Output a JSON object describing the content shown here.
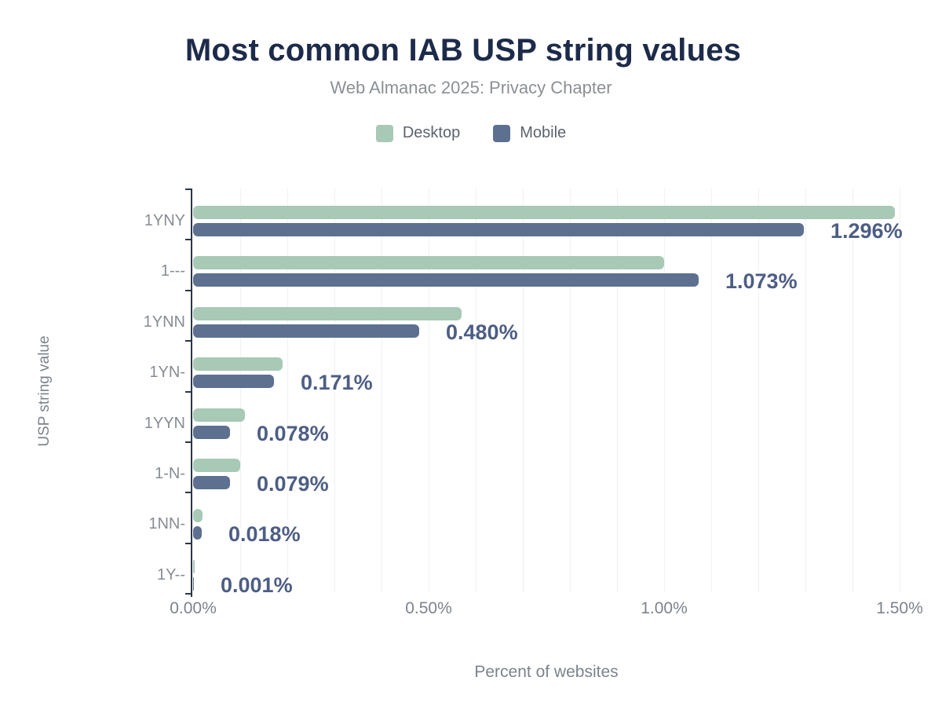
{
  "header": {
    "title": "Most common IAB USP string values",
    "subtitle": "Web Almanac 2025: Privacy Chapter"
  },
  "legend": {
    "items": [
      {
        "label": "Desktop",
        "color": "#a7c9b6"
      },
      {
        "label": "Mobile",
        "color": "#5d7090"
      }
    ]
  },
  "axes": {
    "x_title": "Percent of websites",
    "y_title": "USP string value",
    "x_ticks": [
      "0.00%",
      "0.50%",
      "1.00%",
      "1.50%"
    ]
  },
  "colors": {
    "desktop_bar": "#a7c9b6",
    "mobile_bar": "#5d7090",
    "data_label": "#4d5e84",
    "title": "#1d2b4a",
    "gridline": "#f1f1f4",
    "axis_line": "#2b3648"
  },
  "chart_data": {
    "type": "bar",
    "orientation": "horizontal",
    "title": "Most common IAB USP string values",
    "subtitle": "Web Almanac 2025: Privacy Chapter",
    "xlabel": "Percent of websites",
    "ylabel": "USP string value",
    "xlim": [
      0,
      1.5
    ],
    "x_tick_step": 0.5,
    "grid_minor_step": 0.1,
    "grid": true,
    "legend_position": "top",
    "categories": [
      "1YNY",
      "1---",
      "1YNN",
      "1YN-",
      "1YYN",
      "1-N-",
      "1NN-",
      "1Y--"
    ],
    "series": [
      {
        "name": "Desktop",
        "values": [
          1.49,
          1.0,
          0.57,
          0.19,
          0.11,
          0.1,
          0.02,
          0.002
        ]
      },
      {
        "name": "Mobile",
        "values": [
          1.296,
          1.073,
          0.48,
          0.171,
          0.078,
          0.079,
          0.018,
          0.001
        ]
      }
    ],
    "data_labels": [
      "1.296%",
      "1.073%",
      "0.480%",
      "0.171%",
      "0.078%",
      "0.079%",
      "0.018%",
      "0.001%"
    ]
  }
}
